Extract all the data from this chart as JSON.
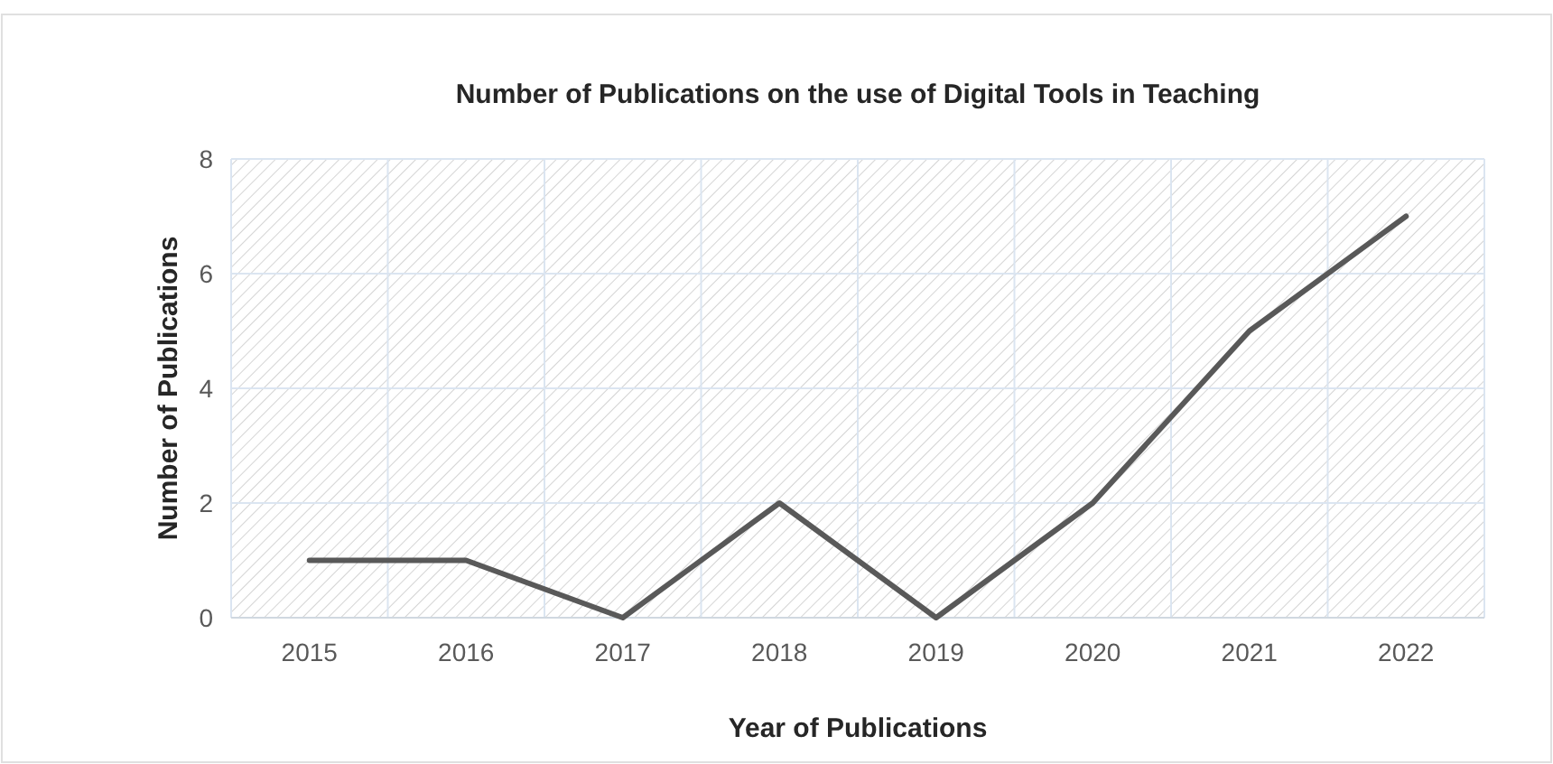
{
  "chart_data": {
    "type": "line",
    "title": "Number of Publications on the use of Digital Tools in Teaching",
    "xlabel": "Year of Publications",
    "ylabel": "Number of Publications",
    "categories": [
      "2015",
      "2016",
      "2017",
      "2018",
      "2019",
      "2020",
      "2021",
      "2022"
    ],
    "series": [
      {
        "color": "#595959",
        "values": [
          1,
          1,
          0,
          2,
          0,
          2,
          5,
          7
        ]
      }
    ],
    "ylim": [
      0,
      8
    ],
    "yticks": [
      0,
      2,
      4,
      6,
      8
    ],
    "grid": true,
    "marker": "none",
    "line_style": "solid"
  }
}
